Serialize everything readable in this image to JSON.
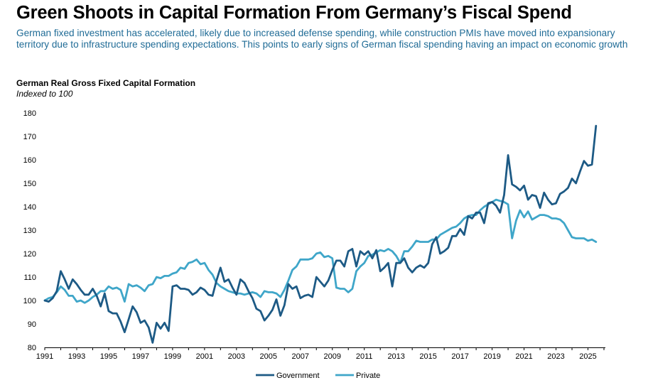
{
  "header": {
    "title": "Green Shoots in Capital Formation From Germany’s Fiscal Spend",
    "subtitle": "German fixed investment has accelerated, likely due to increased defense spending, while construction PMIs have moved into expansionary territory due to infrastructure spending expectations. This points to early signs of German fiscal spending having an impact on economic growth"
  },
  "colors": {
    "government": "#1d5a85",
    "private": "#3fa6c9"
  },
  "chart_data": {
    "type": "line",
    "title": "German Real Gross Fixed Capital Formation",
    "subtitle": "Indexed to 100",
    "x_start": 1991.0,
    "x_step": 0.25,
    "xlim": [
      1991,
      2026
    ],
    "ylim": [
      80,
      180
    ],
    "yticks": [
      180,
      170,
      160,
      150,
      140,
      130,
      120,
      110,
      100,
      90,
      80
    ],
    "xticks": [
      "1991",
      "1993",
      "1995",
      "1997",
      "1999",
      "2001",
      "2003",
      "2005",
      "2007",
      "2009",
      "2011",
      "2013",
      "2015",
      "2017",
      "2019",
      "2021",
      "2023",
      "2025"
    ],
    "grid": false,
    "legend_position": "bottom-center",
    "series": [
      {
        "name": "Government",
        "color_key": "government",
        "values": [
          100,
          99.5,
          101,
          104,
          112.5,
          109,
          105,
          109,
          107,
          104.5,
          102.5,
          102.5,
          105,
          102,
          97.5,
          103,
          95.5,
          94.5,
          94.5,
          91,
          86.5,
          92,
          97.5,
          95,
          90.5,
          91.5,
          88.5,
          82,
          90.5,
          88,
          90.5,
          87,
          106,
          106.5,
          105,
          105,
          104.5,
          102.5,
          103.5,
          105.5,
          104.5,
          102.5,
          102,
          108.5,
          114,
          108,
          109,
          105.5,
          102.5,
          109,
          107.5,
          104,
          101,
          96.5,
          95.5,
          91.5,
          93.5,
          96,
          100.5,
          93.5,
          98,
          107,
          105,
          106,
          101,
          102,
          102.5,
          101.5,
          110,
          108,
          106,
          108.5,
          113,
          117,
          117,
          114.5,
          121,
          122,
          114.5,
          121,
          119.5,
          121,
          118,
          121.5,
          112.5,
          114,
          116,
          106,
          116,
          116,
          118,
          114,
          112,
          114,
          115,
          114,
          116,
          124,
          127,
          120,
          121,
          122.5,
          127.5,
          127.5,
          130.5,
          128,
          136,
          135,
          137.5,
          137.5,
          133,
          141.5,
          142,
          140.5,
          137.5,
          145,
          162,
          149.5,
          148.5,
          147,
          149,
          143,
          145,
          144.5,
          139.5,
          146,
          143,
          141,
          141.5,
          145.5,
          146.5,
          148,
          152,
          150,
          155,
          159.5,
          157.5,
          158,
          174.5
        ]
      },
      {
        "name": "Private",
        "color_key": "private",
        "values": [
          100,
          101,
          101.5,
          103.5,
          106,
          104.5,
          102,
          102,
          99.5,
          100,
          99,
          100,
          101.5,
          102.5,
          104,
          104,
          106,
          105,
          105.5,
          104.5,
          99.5,
          107,
          106,
          106.5,
          105.5,
          104,
          106.5,
          107,
          110,
          109.5,
          110.5,
          110.5,
          111.5,
          112,
          114,
          113.5,
          116,
          116.5,
          117.5,
          115.5,
          116,
          113,
          111,
          107.5,
          106,
          105,
          104,
          103.5,
          103,
          103,
          102.5,
          103,
          103.5,
          103,
          101.5,
          104,
          103.5,
          103.5,
          103,
          101.5,
          104.5,
          108.5,
          113,
          114.5,
          117.5,
          117.5,
          117.5,
          118,
          120,
          120.5,
          118.5,
          119,
          118,
          105.5,
          105,
          105,
          103.5,
          105,
          112.5,
          114.5,
          116,
          119,
          119.5,
          120.5,
          121.5,
          121,
          122,
          121,
          119,
          116,
          121,
          121,
          123,
          125.5,
          125,
          125,
          125,
          126,
          126,
          128,
          129,
          130,
          131,
          131.5,
          133,
          135,
          136,
          136.5,
          136.5,
          138.5,
          140,
          141,
          142,
          143,
          142.5,
          142,
          141,
          126.5,
          134,
          138.5,
          135.5,
          138,
          134.5,
          135.5,
          136.5,
          136.5,
          136,
          135,
          135,
          134.5,
          133,
          130,
          127,
          126.5,
          126.5,
          126.5,
          125.5,
          126,
          125
        ]
      }
    ]
  }
}
